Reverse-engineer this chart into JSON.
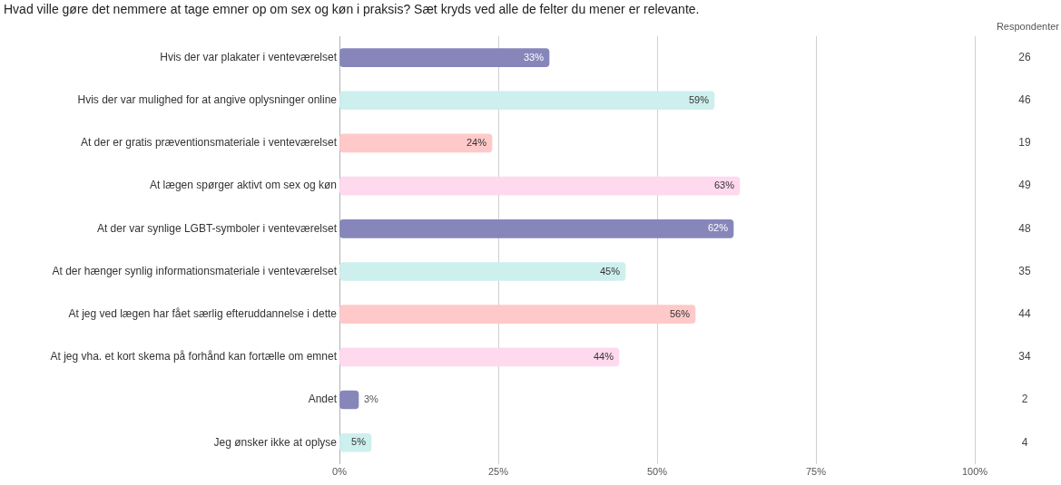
{
  "chart_data": {
    "type": "bar",
    "orientation": "horizontal",
    "title": "Hvad ville gøre det nemmere at tage emner op om sex og køn i praksis? Sæt kryds ved alle de felter du mener er relevante.",
    "categories": [
      "Hvis der var plakater i venteværelset",
      "Hvis der var mulighed for at angive oplysninger online",
      "At der er gratis præventionsmateriale i venteværelset",
      "At lægen spørger aktivt om sex og køn",
      "At der var synlige LGBT-symboler i venteværelset",
      "At der hænger synlig informationsmateriale i venteværelset",
      "At jeg ved lægen har fået særlig efteruddannelse i dette",
      "At jeg vha. et kort skema på forhånd kan fortælle om emnet",
      "Andet",
      "Jeg ønsker ikke at oplyse"
    ],
    "values": [
      33,
      59,
      24,
      63,
      62,
      45,
      56,
      44,
      3,
      5
    ],
    "colors": [
      "#8786bb",
      "#cdf0ee",
      "#ffc9c9",
      "#ffd9ee",
      "#8786bb",
      "#cdf0ee",
      "#ffc9c9",
      "#ffd9ee",
      "#8786bb",
      "#cdf0ee"
    ],
    "value_labels": [
      "33%",
      "59%",
      "24%",
      "63%",
      "62%",
      "45%",
      "56%",
      "44%",
      "3%",
      "5%"
    ],
    "xlim": [
      0,
      100
    ],
    "xticks": [
      {
        "value": 0,
        "label": "0%"
      },
      {
        "value": 25,
        "label": "25%"
      },
      {
        "value": 50,
        "label": "50%"
      },
      {
        "value": 75,
        "label": "75%"
      },
      {
        "value": 100,
        "label": "100%"
      }
    ],
    "grid": "x",
    "legend": false,
    "annotations": [
      "Respondenter",
      "26",
      "46",
      "19",
      "49",
      "48",
      "35",
      "44",
      "34",
      "2",
      "4"
    ]
  }
}
